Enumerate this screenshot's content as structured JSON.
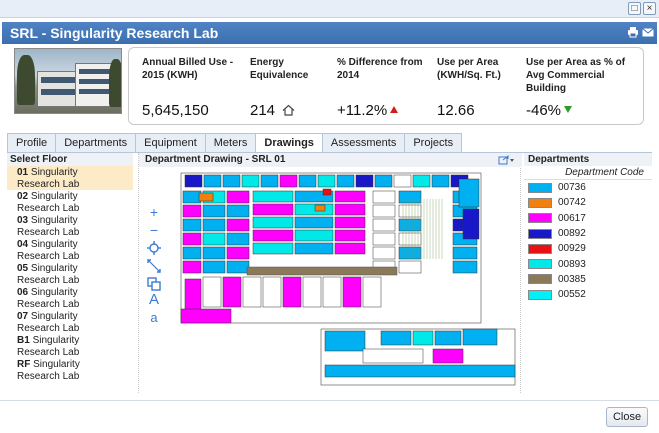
{
  "window": {
    "restore_glyph": "□",
    "close_glyph": "×"
  },
  "title": "SRL - Singularity Research Lab",
  "metrics": [
    {
      "label": "Annual Billed Use - 2015 (KWH)",
      "value": "5,645,150"
    },
    {
      "label": "Energy Equivalence",
      "value": "214"
    },
    {
      "label": "% Difference from 2014",
      "value": "+11.2%",
      "trend": "up",
      "trend_color": "#d21c1c"
    },
    {
      "label": "Use per Area (KWH/Sq. Ft.)",
      "value": "12.66"
    },
    {
      "label": "Use per Area as % of Avg Commercial Building",
      "value": "-46%",
      "trend": "down",
      "trend_color": "#2b9b2b"
    }
  ],
  "tabs": [
    "Profile",
    "Departments",
    "Equipment",
    "Meters",
    "Drawings",
    "Assessments",
    "Projects"
  ],
  "active_tab": "Drawings",
  "floor_panel": {
    "title": "Select Floor",
    "floors": [
      {
        "code": "01",
        "name": "Singularity Research Lab",
        "selected": true
      },
      {
        "code": "02",
        "name": "Singularity Research Lab"
      },
      {
        "code": "03",
        "name": "Singularity Research Lab"
      },
      {
        "code": "04",
        "name": "Singularity Research Lab"
      },
      {
        "code": "05",
        "name": "Singularity Research Lab"
      },
      {
        "code": "06",
        "name": "Singularity Research Lab"
      },
      {
        "code": "07",
        "name": "Singularity Research Lab"
      },
      {
        "code": "B1",
        "name": "Singularity Research Lab"
      },
      {
        "code": "RF",
        "name": "Singularity Research Lab"
      }
    ]
  },
  "drawing": {
    "title": "Department Drawing - SRL 01",
    "tools": [
      "zoom-in",
      "zoom-out",
      "locate",
      "pan",
      "select",
      "text-large",
      "text-small"
    ]
  },
  "departments": {
    "title": "Departments",
    "column": "Department Code",
    "items": [
      {
        "code": "00736",
        "color": "#00b0f0"
      },
      {
        "code": "00742",
        "color": "#f08010"
      },
      {
        "code": "00617",
        "color": "#ff00ff"
      },
      {
        "code": "00892",
        "color": "#1818c8"
      },
      {
        "code": "00929",
        "color": "#e81010"
      },
      {
        "code": "00893",
        "color": "#00e8e8"
      },
      {
        "code": "00385",
        "color": "#8a7a5a"
      },
      {
        "code": "00552",
        "color": "#00f0f8"
      }
    ]
  },
  "footer": {
    "close_label": "Close"
  }
}
